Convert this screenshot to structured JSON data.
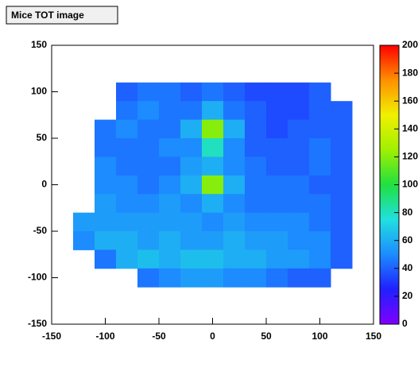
{
  "chart_data": {
    "type": "heatmap",
    "title": "Mice TOT image",
    "x": [
      -140,
      -120,
      -100,
      -80,
      -60,
      -40,
      -20,
      0,
      20,
      40,
      60,
      80,
      100,
      120,
      140
    ],
    "y": [
      140,
      120,
      100,
      80,
      60,
      40,
      20,
      0,
      -20,
      -40,
      -60,
      -80,
      -100,
      -120,
      -140
    ],
    "z": [
      [
        null,
        null,
        null,
        null,
        null,
        null,
        null,
        null,
        null,
        null,
        null,
        null,
        null,
        null,
        null
      ],
      [
        null,
        null,
        null,
        null,
        null,
        null,
        null,
        null,
        null,
        null,
        null,
        null,
        null,
        null,
        null
      ],
      [
        null,
        null,
        null,
        40,
        45,
        45,
        40,
        45,
        40,
        35,
        35,
        35,
        40,
        null,
        null
      ],
      [
        null,
        null,
        null,
        45,
        50,
        45,
        45,
        60,
        45,
        40,
        35,
        35,
        40,
        40,
        null
      ],
      [
        null,
        null,
        45,
        50,
        45,
        45,
        60,
        120,
        60,
        40,
        35,
        40,
        40,
        40,
        null
      ],
      [
        null,
        null,
        45,
        45,
        45,
        50,
        50,
        80,
        50,
        40,
        40,
        40,
        45,
        40,
        null
      ],
      [
        null,
        null,
        50,
        45,
        45,
        45,
        55,
        60,
        50,
        45,
        40,
        40,
        45,
        40,
        null
      ],
      [
        null,
        null,
        50,
        50,
        45,
        50,
        60,
        120,
        60,
        45,
        45,
        45,
        40,
        40,
        null
      ],
      [
        null,
        null,
        55,
        50,
        50,
        55,
        50,
        60,
        50,
        45,
        45,
        45,
        45,
        40,
        null
      ],
      [
        null,
        55,
        55,
        55,
        55,
        55,
        55,
        50,
        55,
        50,
        50,
        50,
        45,
        40,
        null
      ],
      [
        null,
        50,
        60,
        60,
        55,
        60,
        55,
        55,
        60,
        55,
        55,
        50,
        50,
        40,
        null
      ],
      [
        null,
        null,
        45,
        60,
        65,
        60,
        65,
        65,
        60,
        60,
        55,
        55,
        50,
        40,
        null
      ],
      [
        null,
        null,
        null,
        null,
        45,
        50,
        55,
        55,
        50,
        50,
        45,
        40,
        40,
        null,
        null
      ],
      [
        null,
        null,
        null,
        null,
        null,
        null,
        null,
        null,
        null,
        null,
        null,
        null,
        null,
        null,
        null
      ],
      [
        null,
        null,
        null,
        null,
        null,
        null,
        null,
        null,
        null,
        null,
        null,
        null,
        null,
        null,
        null
      ]
    ],
    "xlim": [
      -150,
      150
    ],
    "ylim": [
      -150,
      150
    ],
    "xticks": [
      -150,
      -100,
      -50,
      0,
      50,
      100,
      150
    ],
    "yticks": [
      -150,
      -100,
      -50,
      0,
      50,
      100,
      150
    ],
    "zlim": [
      0,
      200
    ],
    "zticks": [
      0,
      20,
      40,
      60,
      80,
      100,
      120,
      140,
      160,
      180,
      200
    ],
    "colormap": [
      "#8000ff",
      "#2020ff",
      "#1c8cff",
      "#20e0e0",
      "#20e040",
      "#a0f000",
      "#f0f000",
      "#ff9000",
      "#ff0000"
    ]
  }
}
